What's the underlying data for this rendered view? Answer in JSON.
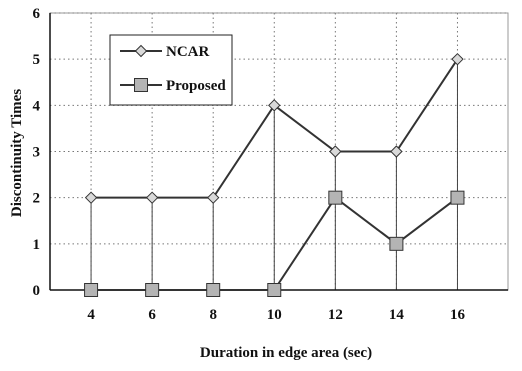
{
  "chart_data": {
    "type": "line",
    "xlabel": "Duration in edge area (sec)",
    "ylabel": "Discontinuity Times",
    "categories": [
      "4",
      "6",
      "8",
      "10",
      "12",
      "14",
      "16"
    ],
    "ylim": [
      0,
      6
    ],
    "yticks": [
      "0",
      "1",
      "2",
      "3",
      "4",
      "5",
      "6"
    ],
    "grid": true,
    "legend_position": "top-left",
    "series": [
      {
        "name": "NCAR",
        "marker": "diamond",
        "values": [
          2,
          2,
          2,
          4,
          3,
          3,
          5
        ]
      },
      {
        "name": "Proposed",
        "marker": "square",
        "values": [
          0,
          0,
          0,
          0,
          2,
          1,
          2
        ]
      }
    ]
  }
}
